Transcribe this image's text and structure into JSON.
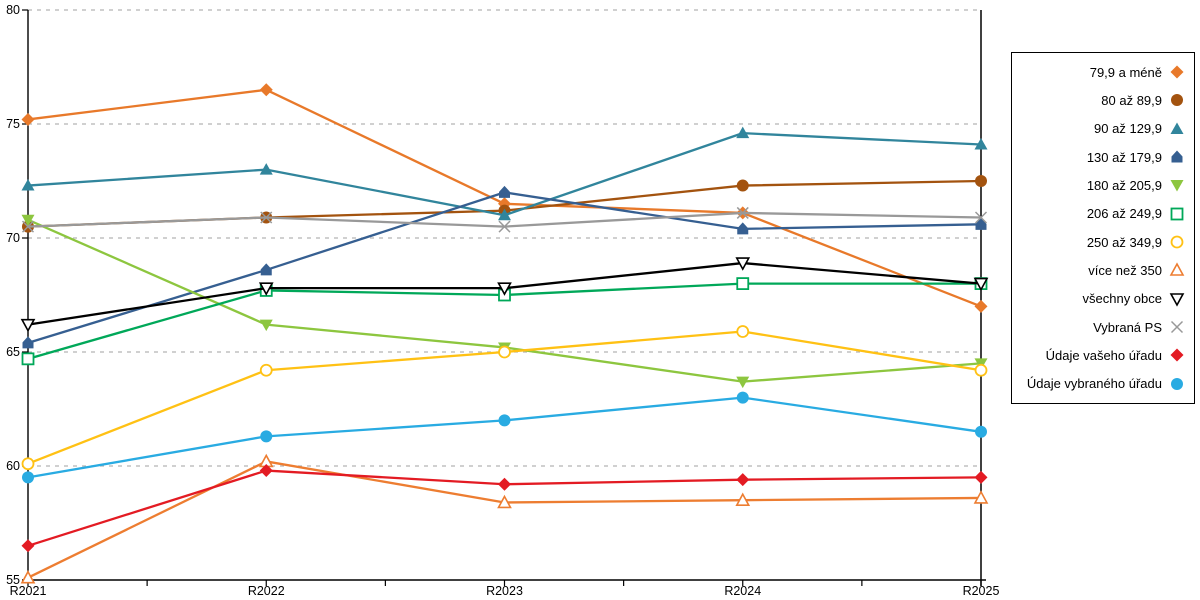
{
  "chart_data": {
    "type": "line",
    "title": "",
    "xlabel": "",
    "ylabel": "",
    "x": [
      "R2021",
      "R2022",
      "R2023",
      "R2024",
      "R2025"
    ],
    "ylim": [
      55,
      80
    ],
    "yticks": [
      55,
      60,
      65,
      70,
      75,
      80
    ],
    "grid": "horizontal-dashed",
    "legend_position": "right-outside",
    "vertical_marker_line_at": "R2025",
    "gridline_color": "#b3b3b3",
    "axis_color": "#000000",
    "series": [
      {
        "name": "79,9 a méně",
        "color": "#E8792A",
        "marker": "diamond",
        "values": [
          75.2,
          76.5,
          71.5,
          71.1,
          67.0
        ]
      },
      {
        "name": "80 až 89,9",
        "color": "#A3530F",
        "marker": "circle",
        "values": [
          70.5,
          70.9,
          71.2,
          72.3,
          72.5
        ]
      },
      {
        "name": "90 až 129,9",
        "color": "#31859C",
        "marker": "triangle-up",
        "values": [
          72.3,
          73.0,
          71.0,
          74.6,
          74.1
        ]
      },
      {
        "name": "130 až 179,9",
        "color": "#365F91",
        "marker": "pentagon",
        "values": [
          65.4,
          68.6,
          72.0,
          70.4,
          70.6
        ]
      },
      {
        "name": "180 až 205,9",
        "color": "#8DC63F",
        "marker": "triangle-down",
        "values": [
          70.8,
          66.2,
          65.2,
          63.7,
          64.5
        ]
      },
      {
        "name": "206 až 249,9",
        "color": "#00A859",
        "marker": "square-open",
        "values": [
          64.7,
          67.7,
          67.5,
          68.0,
          68.0
        ]
      },
      {
        "name": "250 až 349,9",
        "color": "#FFC114",
        "marker": "circle-open",
        "values": [
          60.1,
          64.2,
          65.0,
          65.9,
          64.2
        ]
      },
      {
        "name": "více než 350",
        "color": "#ED7D31",
        "marker": "triangle-up-open",
        "values": [
          55.1,
          60.2,
          58.4,
          58.5,
          58.6
        ]
      },
      {
        "name": "všechny obce",
        "color": "#000000",
        "marker": "triangle-down-open",
        "values": [
          66.2,
          67.8,
          67.8,
          68.9,
          68.0
        ]
      },
      {
        "name": "Vybraná PS",
        "color": "#999999",
        "marker": "x",
        "values": [
          70.5,
          70.9,
          70.5,
          71.1,
          70.9
        ]
      },
      {
        "name": "Údaje vašeho úřadu",
        "color": "#E31B23",
        "marker": "diamond",
        "values": [
          56.5,
          59.8,
          59.2,
          59.4,
          59.5
        ]
      },
      {
        "name": "Údaje vybraného úřadu",
        "color": "#29ABE2",
        "marker": "circle",
        "values": [
          59.5,
          61.3,
          62.0,
          63.0,
          61.5
        ]
      }
    ]
  }
}
